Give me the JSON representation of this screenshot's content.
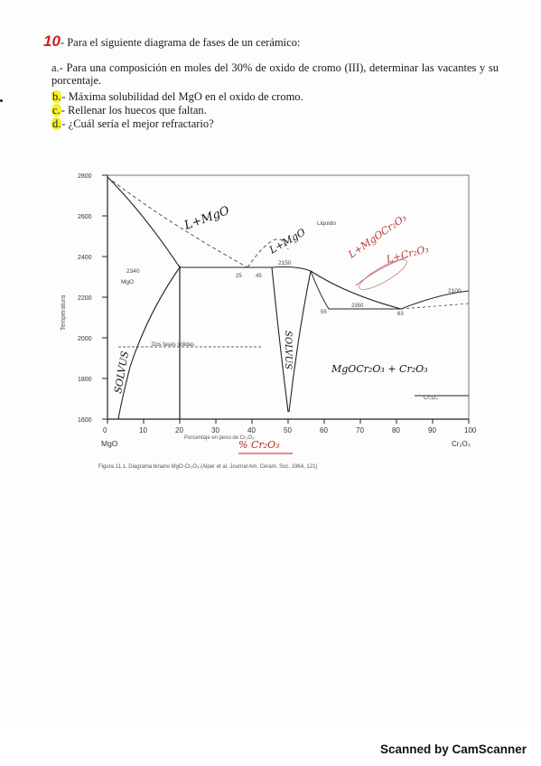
{
  "question": {
    "number": "10",
    "title": "- Para el siguiente diagrama de fases de un cerámico:",
    "items": [
      {
        "letter": "a.",
        "text": "- Para una composición en moles del 30% de oxido de cromo (III), determinar las vacantes y su porcentaje."
      },
      {
        "letter": "b.",
        "text": "- Máxima solubilidad del MgO en el oxido de cromo."
      },
      {
        "letter": "c.",
        "text": "- Rellenar los huecos que faltan."
      },
      {
        "letter": "d.",
        "text": "- ¿Cuál sería el mejor refractario?"
      }
    ]
  },
  "diagram": {
    "y_ticks": [
      "2800",
      "2600",
      "2400",
      "2200",
      "2000",
      "1800",
      "1600"
    ],
    "x_ticks": [
      "0",
      "10",
      "20",
      "30",
      "40",
      "50",
      "60",
      "70",
      "80",
      "90",
      "100"
    ],
    "x_left_label": "MgO",
    "x_right_label": "Cr₂O₃",
    "y_axis_label": "Temperatura",
    "x_axis_label": "Porcentaje en peso de Cr₂O₃",
    "temps": {
      "t2340": "2340",
      "t2350": "2350",
      "t2150": "2150",
      "t2100": "2100"
    },
    "region_labels": {
      "liquid": "Liquido",
      "mgo_ss": "MgO",
      "two_solids": "Dos fases sólidas",
      "solvus_left": "SOLVUS",
      "solvus_right": "SOLVUS",
      "cr2o3_ss": "Cr₂O₃",
      "percent_left": "25",
      "percent_right": "45",
      "percent_eut": "63",
      "percent_lower": "55"
    },
    "handwritten": {
      "l_mgo_1": "L+MgO",
      "l_mgo_2": "L+MgO",
      "l_mgocr": "L+MgOCr₂O₃",
      "l_cr2o3": "L+Cr₂O₃",
      "mgo_cr2o3": "MgOCr₂O₃ + Cr₂O₃",
      "percent_cr2o3": "% Cr₂O₃"
    },
    "caption": "Figura 11.1. Diagrama binario MgO-Cr₂O₃ (Alper et al. Journal Am. Ceram. Soc. 1964, 121)"
  },
  "footer": {
    "text": "Scanned by CamScanner"
  }
}
